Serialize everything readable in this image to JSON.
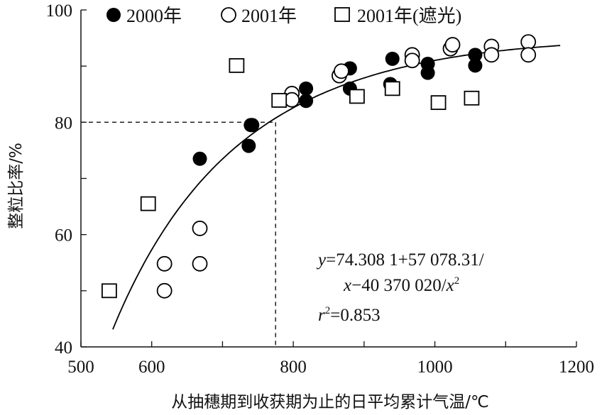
{
  "chart_data": {
    "type": "scatter",
    "xlabel": "从抽穗期到收获期为止的日平均累计气温/℃",
    "ylabel": "整粒比率/%",
    "xlim": [
      500,
      1200
    ],
    "ylim": [
      40,
      100
    ],
    "xticks": [
      500,
      600,
      800,
      1000,
      1200
    ],
    "xtick_labels": [
      "500",
      "600",
      "800",
      "1000",
      "1200"
    ],
    "yticks": [
      40,
      60,
      80,
      100
    ],
    "ytick_labels": [
      "40",
      "60",
      "80",
      "100"
    ],
    "legend_position": "top",
    "series": [
      {
        "name": "2000年",
        "marker": "filled-circle",
        "points": [
          [
            668,
            73.5
          ],
          [
            737,
            75.8
          ],
          [
            740,
            79.5
          ],
          [
            742,
            79.5
          ],
          [
            818,
            86.0
          ],
          [
            818,
            83.8
          ],
          [
            880,
            89.6
          ],
          [
            880,
            86.0
          ],
          [
            937,
            86.8
          ],
          [
            940,
            91.3
          ],
          [
            990,
            90.4
          ],
          [
            990,
            88.8
          ],
          [
            1057,
            92.0
          ],
          [
            1057,
            90.1
          ]
        ]
      },
      {
        "name": "2001年",
        "marker": "open-circle",
        "points": [
          [
            618,
            54.8
          ],
          [
            618,
            50.0
          ],
          [
            668,
            61.1
          ],
          [
            668,
            54.8
          ],
          [
            798,
            85.1
          ],
          [
            798,
            84.0
          ],
          [
            865,
            88.3
          ],
          [
            868,
            89.1
          ],
          [
            968,
            92.0
          ],
          [
            968,
            91.0
          ],
          [
            1022,
            93.1
          ],
          [
            1025,
            93.8
          ],
          [
            1080,
            93.5
          ],
          [
            1080,
            92.0
          ],
          [
            1132,
            94.3
          ],
          [
            1132,
            92.0
          ]
        ]
      },
      {
        "name": "2001年(遮光)",
        "marker": "open-square",
        "points": [
          [
            540,
            50.0
          ],
          [
            595,
            65.5
          ],
          [
            720,
            90.1
          ],
          [
            780,
            83.9
          ],
          [
            890,
            84.6
          ],
          [
            940,
            86.0
          ],
          [
            1005,
            83.5
          ],
          [
            1052,
            84.3
          ]
        ]
      }
    ],
    "fit_curve": {
      "equation_line1": "=74.308 1+57 078.31/",
      "equation_line1_var": "y",
      "equation_line2": "−40 370 020/",
      "equation_line2_var": "x",
      "equation_line2_tail": "x",
      "equation_line2_sup": "2",
      "r2_var": "r",
      "r2_sup": "2",
      "r2_value": "=0.853",
      "a": 74.3081,
      "b": 57078.31,
      "c": -40370020,
      "x_from": 545,
      "x_to": 1178
    },
    "reference_lines": {
      "x": 775,
      "y": 80
    }
  },
  "colors": {
    "axis": "#111111",
    "marker": "#000000",
    "background": "#ffffff"
  }
}
